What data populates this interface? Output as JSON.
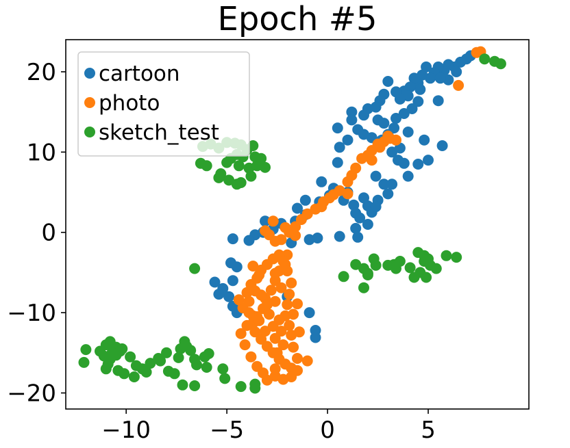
{
  "chart_data": {
    "type": "scatter",
    "title": "Epoch #5",
    "xlabel": "",
    "ylabel": "",
    "xlim": [
      -13,
      10
    ],
    "ylim": [
      -22,
      24
    ],
    "xticks": [
      -10,
      -5,
      0,
      5
    ],
    "yticks": [
      -20,
      -10,
      0,
      10,
      20
    ],
    "grid": false,
    "legend_position": "top-left",
    "series": [
      {
        "name": "cartoon",
        "color": "#1f77b4",
        "points": [
          [
            7.1,
            22.0
          ],
          [
            6.9,
            21.6
          ],
          [
            6.6,
            21.2
          ],
          [
            6.3,
            20.6
          ],
          [
            6.0,
            20.9
          ],
          [
            5.8,
            20.2
          ],
          [
            5.5,
            20.6
          ],
          [
            5.3,
            19.9
          ],
          [
            5.1,
            19.2
          ],
          [
            4.9,
            20.6
          ],
          [
            4.7,
            19.6
          ],
          [
            4.5,
            18.6
          ],
          [
            4.3,
            19.2
          ],
          [
            4.6,
            17.8
          ],
          [
            4.1,
            18.1
          ],
          [
            3.8,
            17.6
          ],
          [
            4.0,
            17.0
          ],
          [
            3.6,
            16.6
          ],
          [
            3.4,
            17.5
          ],
          [
            3.0,
            18.8
          ],
          [
            2.8,
            17.2
          ],
          [
            2.6,
            16.4
          ],
          [
            2.4,
            15.6
          ],
          [
            2.0,
            15.4
          ],
          [
            1.8,
            14.6
          ],
          [
            1.2,
            15.0
          ],
          [
            1.2,
            14.0
          ],
          [
            2.5,
            14.0
          ],
          [
            2.8,
            13.6
          ],
          [
            3.4,
            14.2
          ],
          [
            3.8,
            14.8
          ],
          [
            4.2,
            15.4
          ],
          [
            4.5,
            16.3
          ],
          [
            5.5,
            16.4
          ],
          [
            4.0,
            12.5
          ],
          [
            3.3,
            13.0
          ],
          [
            3.0,
            12.2
          ],
          [
            2.7,
            11.5
          ],
          [
            2.2,
            11.8
          ],
          [
            1.8,
            12.2
          ],
          [
            1.5,
            12.8
          ],
          [
            0.5,
            13.0
          ],
          [
            1.0,
            11.5
          ],
          [
            0.6,
            10.6
          ],
          [
            0.5,
            8.7
          ],
          [
            -0.3,
            6.3
          ],
          [
            0.3,
            5.5
          ],
          [
            0.1,
            4.6
          ],
          [
            -0.4,
            3.8
          ],
          [
            -1.1,
            4.0
          ],
          [
            -1.5,
            3.0
          ],
          [
            -1.1,
            2.2
          ],
          [
            -1.6,
            1.4
          ],
          [
            -2.3,
            1.1
          ],
          [
            -2.7,
            0.4
          ],
          [
            -3.2,
            0.0
          ],
          [
            -3.6,
            -0.3
          ],
          [
            -3.9,
            -1.0
          ],
          [
            -4.7,
            -0.8
          ],
          [
            -3.1,
            1.4
          ],
          [
            -0.9,
            -0.9
          ],
          [
            0.8,
            4.0
          ],
          [
            1.3,
            3.4
          ],
          [
            1.4,
            2.4
          ],
          [
            1.6,
            1.8
          ],
          [
            2.2,
            2.5
          ],
          [
            2.0,
            3.3
          ],
          [
            2.5,
            4.0
          ],
          [
            3.0,
            4.8
          ],
          [
            2.8,
            6.0
          ],
          [
            2.4,
            7.0
          ],
          [
            3.5,
            9.0
          ],
          [
            3.2,
            10.0
          ],
          [
            3.6,
            10.5
          ],
          [
            3.8,
            8.6
          ],
          [
            3.2,
            6.0
          ],
          [
            4.0,
            7.0
          ],
          [
            4.5,
            8.5
          ],
          [
            5.0,
            9.0
          ],
          [
            5.7,
            10.8
          ],
          [
            4.8,
            11.5
          ],
          [
            6.0,
            19.0
          ],
          [
            6.4,
            20.0
          ],
          [
            5.6,
            19.2
          ],
          [
            -4.5,
            -10.0
          ],
          [
            -4.7,
            -9.2
          ],
          [
            -4.9,
            -8.0
          ],
          [
            -4.7,
            -6.0
          ],
          [
            -4.5,
            -4.3
          ],
          [
            -4.8,
            -3.8
          ],
          [
            -5.2,
            -7.0
          ],
          [
            -5.4,
            -7.7
          ],
          [
            -5.6,
            -6.2
          ],
          [
            -0.9,
            -10.0
          ],
          [
            -0.6,
            -12.2
          ],
          [
            -0.6,
            -13.1
          ],
          [
            -2.0,
            -8.0
          ],
          [
            -1.8,
            -1.3
          ],
          [
            -0.5,
            -0.7
          ],
          [
            0.6,
            -0.5
          ],
          [
            1.4,
            0.5
          ],
          [
            1.5,
            -0.6
          ],
          [
            2.0,
            1.0
          ],
          [
            2.4,
            3.2
          ],
          [
            1.8,
            4.3
          ],
          [
            1.0,
            5.0
          ]
        ]
      },
      {
        "name": "photo",
        "color": "#ff7f0e",
        "points": [
          [
            7.6,
            22.5
          ],
          [
            7.4,
            22.4
          ],
          [
            6.5,
            18.3
          ],
          [
            3.4,
            11.5
          ],
          [
            3.1,
            11.7
          ],
          [
            2.8,
            11.3
          ],
          [
            2.6,
            10.6
          ],
          [
            2.2,
            10.2
          ],
          [
            2.0,
            9.6
          ],
          [
            1.7,
            9.2
          ],
          [
            1.4,
            8.0
          ],
          [
            1.2,
            7.1
          ],
          [
            1.0,
            6.3
          ],
          [
            0.6,
            5.2
          ],
          [
            0.3,
            4.7
          ],
          [
            0.1,
            4.3
          ],
          [
            -0.2,
            3.8
          ],
          [
            -0.6,
            2.9
          ],
          [
            -1.0,
            2.3
          ],
          [
            -1.3,
            1.6
          ],
          [
            -1.6,
            0.7
          ],
          [
            -1.9,
            0.0
          ],
          [
            -2.3,
            -0.9
          ],
          [
            -2.6,
            -1.1
          ],
          [
            -2.9,
            -0.3
          ],
          [
            -3.1,
            0.2
          ],
          [
            -2.7,
            1.4
          ],
          [
            -2.1,
            0.6
          ],
          [
            -1.6,
            -0.4
          ],
          [
            -2.0,
            -2.8
          ],
          [
            -2.1,
            -4.0
          ],
          [
            -2.4,
            -4.8
          ],
          [
            -2.6,
            -6.0
          ],
          [
            -2.8,
            -7.2
          ],
          [
            -3.1,
            -8.2
          ],
          [
            -3.2,
            -9.5
          ],
          [
            -3.5,
            -10.5
          ],
          [
            -3.7,
            -11.3
          ],
          [
            -3.6,
            -12.4
          ],
          [
            -3.3,
            -13.3
          ],
          [
            -3.0,
            -14.2
          ],
          [
            -2.7,
            -15.0
          ],
          [
            -2.4,
            -15.8
          ],
          [
            -2.1,
            -16.4
          ],
          [
            -1.8,
            -16.9
          ],
          [
            -1.5,
            -17.2
          ],
          [
            -1.8,
            -18.0
          ],
          [
            -2.2,
            -18.3
          ],
          [
            -2.6,
            -17.9
          ],
          [
            -3.0,
            -18.4
          ],
          [
            -3.2,
            -17.5
          ],
          [
            -3.5,
            -16.7
          ],
          [
            -3.8,
            -15.5
          ],
          [
            -4.1,
            -14.0
          ],
          [
            -4.3,
            -12.6
          ],
          [
            -4.0,
            -11.6
          ],
          [
            -3.7,
            -10.4
          ],
          [
            -4.2,
            -9.4
          ],
          [
            -4.4,
            -8.4
          ],
          [
            -4.0,
            -7.5
          ],
          [
            -3.8,
            -6.5
          ],
          [
            -3.5,
            -5.7
          ],
          [
            -3.3,
            -4.7
          ],
          [
            -3.0,
            -4.0
          ],
          [
            -2.7,
            -3.3
          ],
          [
            -2.4,
            -2.8
          ],
          [
            -2.2,
            -3.6
          ],
          [
            -2.0,
            -4.8
          ],
          [
            -1.8,
            -6.3
          ],
          [
            -1.9,
            -7.7
          ],
          [
            -2.0,
            -9.0
          ],
          [
            -2.1,
            -10.4
          ],
          [
            -1.9,
            -11.6
          ],
          [
            -1.8,
            -12.8
          ],
          [
            -2.2,
            -14.0
          ],
          [
            -2.5,
            -15.0
          ],
          [
            -2.6,
            -13.2
          ],
          [
            -2.7,
            -11.7
          ],
          [
            -2.9,
            -10.2
          ],
          [
            -3.0,
            -9.0
          ],
          [
            -3.3,
            -7.8
          ],
          [
            -3.6,
            -7.3
          ],
          [
            -3.9,
            -8.6
          ],
          [
            -3.9,
            -10.0
          ],
          [
            -3.4,
            -11.0
          ],
          [
            -3.1,
            -12.3
          ],
          [
            -2.3,
            -12.3
          ],
          [
            -2.4,
            -10.9
          ],
          [
            -2.6,
            -8.6
          ],
          [
            -1.5,
            -15.7
          ],
          [
            -1.0,
            -16.0
          ],
          [
            -1.4,
            -12.4
          ],
          [
            -1.7,
            -10.2
          ],
          [
            -2.3,
            -6.9
          ],
          [
            -2.6,
            -5.1
          ],
          [
            -3.4,
            -5.3
          ],
          [
            -3.7,
            -4.2
          ],
          [
            -1.5,
            -8.9
          ],
          [
            -2.6,
            -17.0
          ],
          [
            -1.7,
            -14.3
          ],
          [
            3.0,
            12.0
          ],
          [
            2.5,
            11.0
          ],
          [
            2.2,
            9.0
          ],
          [
            1.0,
            4.8
          ],
          [
            -0.3,
            3.2
          ]
        ]
      },
      {
        "name": "sketch_test",
        "color": "#2ca02c",
        "points": [
          [
            7.8,
            21.6
          ],
          [
            8.3,
            21.3
          ],
          [
            8.6,
            21.0
          ],
          [
            -6.2,
            10.7
          ],
          [
            -5.8,
            11.0
          ],
          [
            -5.4,
            10.5
          ],
          [
            -5.0,
            11.2
          ],
          [
            -4.6,
            11.1
          ],
          [
            -4.3,
            10.9
          ],
          [
            -4.0,
            10.3
          ],
          [
            -3.7,
            10.8
          ],
          [
            -4.5,
            9.7
          ],
          [
            -4.8,
            9.2
          ],
          [
            -5.0,
            8.7
          ],
          [
            -4.4,
            8.3
          ],
          [
            -3.9,
            8.0
          ],
          [
            -3.5,
            8.3
          ],
          [
            -3.1,
            8.1
          ],
          [
            -3.6,
            9.4
          ],
          [
            -3.3,
            9.2
          ],
          [
            -4.2,
            9.4
          ],
          [
            -6.3,
            8.6
          ],
          [
            -6.0,
            8.3
          ],
          [
            -5.3,
            7.3
          ],
          [
            -5.4,
            6.8
          ],
          [
            -4.9,
            6.5
          ],
          [
            -4.5,
            6.0
          ],
          [
            -4.3,
            6.2
          ],
          [
            -3.8,
            7.0
          ],
          [
            -6.6,
            -4.5
          ],
          [
            0.8,
            -5.5
          ],
          [
            1.4,
            -4.0
          ],
          [
            1.8,
            -4.5
          ],
          [
            2.0,
            -5.1
          ],
          [
            2.4,
            -4.1
          ],
          [
            2.3,
            -3.3
          ],
          [
            3.0,
            -4.1
          ],
          [
            3.3,
            -4.0
          ],
          [
            3.6,
            -3.6
          ],
          [
            3.4,
            -4.5
          ],
          [
            4.1,
            -4.4
          ],
          [
            4.3,
            -5.6
          ],
          [
            4.6,
            -5.0
          ],
          [
            4.9,
            -5.6
          ],
          [
            4.5,
            -2.5
          ],
          [
            4.8,
            -2.9
          ],
          [
            5.0,
            -3.3
          ],
          [
            4.8,
            -3.6
          ],
          [
            5.4,
            -4.5
          ],
          [
            5.9,
            -2.9
          ],
          [
            6.4,
            -3.1
          ],
          [
            5.1,
            -4.1
          ],
          [
            1.8,
            -6.9
          ],
          [
            2.0,
            -5.3
          ],
          [
            -12.0,
            -14.6
          ],
          [
            -12.1,
            -16.2
          ],
          [
            -11.3,
            -14.8
          ],
          [
            -11.0,
            -14.0
          ],
          [
            -10.8,
            -13.6
          ],
          [
            -10.5,
            -14.3
          ],
          [
            -10.2,
            -14.5
          ],
          [
            -10.5,
            -15.3
          ],
          [
            -10.8,
            -15.8
          ],
          [
            -11.1,
            -15.4
          ],
          [
            -10.9,
            -16.4
          ],
          [
            -11.0,
            -17.0
          ],
          [
            -10.4,
            -17.2
          ],
          [
            -10.1,
            -17.6
          ],
          [
            -9.8,
            -15.5
          ],
          [
            -9.5,
            -16.6
          ],
          [
            -9.6,
            -18.0
          ],
          [
            -9.2,
            -17.0
          ],
          [
            -8.8,
            -16.3
          ],
          [
            -8.4,
            -15.7
          ],
          [
            -8.0,
            -15.0
          ],
          [
            -7.9,
            -17.3
          ],
          [
            -7.6,
            -17.6
          ],
          [
            -7.4,
            -15.6
          ],
          [
            -7.3,
            -14.5
          ],
          [
            -7.1,
            -13.6
          ],
          [
            -7.0,
            -14.2
          ],
          [
            -6.8,
            -14.7
          ],
          [
            -6.6,
            -15.8
          ],
          [
            -6.5,
            -16.5
          ],
          [
            -6.1,
            -15.5
          ],
          [
            -5.9,
            -15.1
          ],
          [
            -6.0,
            -16.8
          ],
          [
            -7.2,
            -19.0
          ],
          [
            -6.6,
            -19.1
          ],
          [
            -5.2,
            -17.0
          ],
          [
            -5.1,
            -18.2
          ],
          [
            -4.3,
            -19.2
          ],
          [
            -3.6,
            -18.9
          ],
          [
            -3.6,
            -19.4
          ],
          [
            -10.7,
            -15.0
          ],
          [
            -10.3,
            -14.8
          ],
          [
            -8.3,
            -16.0
          ],
          [
            -9.0,
            -17.4
          ]
        ]
      }
    ]
  }
}
